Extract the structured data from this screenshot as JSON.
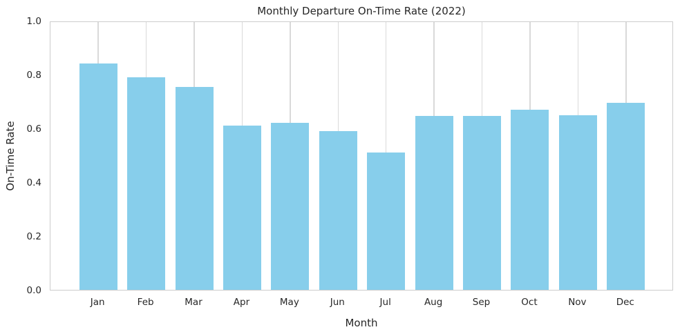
{
  "chart_data": {
    "type": "bar",
    "title": "Monthly Departure On-Time Rate (2022)",
    "xlabel": "Month",
    "ylabel": "On-Time Rate",
    "categories": [
      "Jan",
      "Feb",
      "Mar",
      "Apr",
      "May",
      "Jun",
      "Jul",
      "Aug",
      "Sep",
      "Oct",
      "Nov",
      "Dec"
    ],
    "values": [
      0.84,
      0.79,
      0.755,
      0.61,
      0.62,
      0.59,
      0.51,
      0.645,
      0.645,
      0.67,
      0.65,
      0.695
    ],
    "ylim": [
      0.0,
      1.0
    ],
    "yticks": [
      {
        "value": 0.0,
        "label": "0.0"
      },
      {
        "value": 0.2,
        "label": "0.2"
      },
      {
        "value": 0.4,
        "label": "0.4"
      },
      {
        "value": 0.6,
        "label": "0.6"
      },
      {
        "value": 0.8,
        "label": "0.8"
      },
      {
        "value": 1.0,
        "label": "1.0"
      }
    ],
    "grid": "vertical-only",
    "legend": "none",
    "colors": {
      "bar": "#87CEEB",
      "grid": "#d9d9d9",
      "spine": "#cccccc",
      "text": "#262626"
    }
  }
}
